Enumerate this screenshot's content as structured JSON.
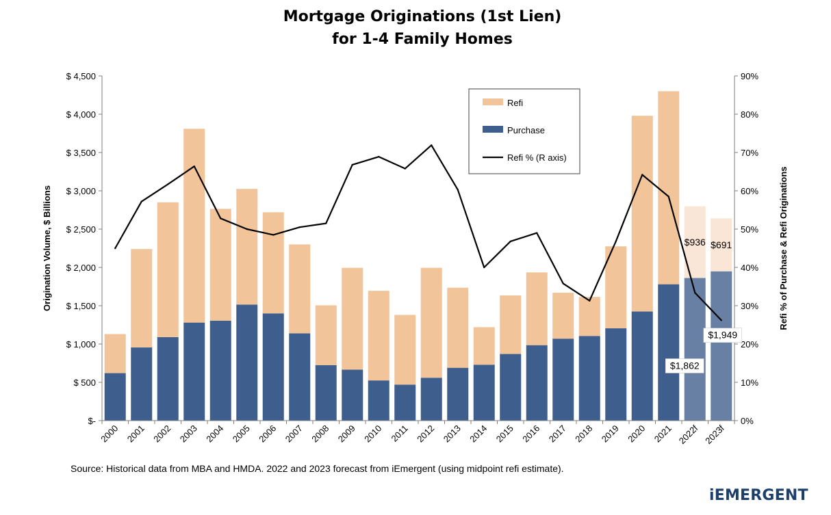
{
  "title_lines": [
    "Mortgage Originations (1st Lien)",
    "for 1-4 Family Homes"
  ],
  "source": "Source:  Historical data from MBA and HMDA.  2022 and 2023 forecast from iEmergent (using midpoint refi estimate).",
  "logo": {
    "text": "iEMERGENT"
  },
  "colors": {
    "refi": "#f2c49a",
    "purchase": "#3e5f8e",
    "refi_forecast": "#f9e6d6",
    "purchase_forecast": "#6880a3",
    "line": "#000000",
    "logo": "#1f3f6b"
  },
  "chart_data": {
    "type": "bar",
    "stacked": true,
    "categories": [
      "2000",
      "2001",
      "2002",
      "2003",
      "2004",
      "2005",
      "2006",
      "2007",
      "2008",
      "2009",
      "2010",
      "2011",
      "2012",
      "2013",
      "2014",
      "2015",
      "2016",
      "2017",
      "2018",
      "2019",
      "2020",
      "2021",
      "2022f",
      "2023f"
    ],
    "forecast_categories": [
      "2022f",
      "2023f"
    ],
    "series": [
      {
        "name": "Purchase",
        "type": "bar",
        "axis": "left",
        "values": [
          620,
          955,
          1090,
          1280,
          1305,
          1515,
          1400,
          1140,
          725,
          665,
          525,
          470,
          560,
          690,
          730,
          870,
          985,
          1070,
          1105,
          1205,
          1425,
          1780,
          1862,
          1949
        ]
      },
      {
        "name": "Refi",
        "type": "bar",
        "axis": "left",
        "values": [
          510,
          1285,
          1760,
          2530,
          1460,
          1510,
          1320,
          1160,
          780,
          1330,
          1170,
          910,
          1435,
          1045,
          490,
          765,
          950,
          600,
          510,
          1070,
          2555,
          2520,
          936,
          691
        ]
      },
      {
        "name": "Refi % (R axis)",
        "type": "line",
        "axis": "right",
        "values": [
          45,
          57.2,
          61.7,
          66.4,
          52.8,
          50,
          48.5,
          50.5,
          51.5,
          66.8,
          68.9,
          65.8,
          71.9,
          60.3,
          40,
          46.8,
          49,
          35.8,
          31.3,
          46.8,
          64.2,
          58.5,
          33.4,
          26.2
        ]
      }
    ],
    "data_labels": [
      {
        "category": "2022f",
        "series": "Refi",
        "text": "$936"
      },
      {
        "category": "2023f",
        "series": "Refi",
        "text": "$691"
      },
      {
        "category": "2022f",
        "series": "Purchase",
        "text": "$1,862"
      },
      {
        "category": "2023f",
        "series": "Purchase",
        "text": "$1,949"
      }
    ],
    "y_left": {
      "label": "Origination Volume, $ Billions",
      "range": [
        0,
        4500
      ],
      "ticks": [
        0,
        500,
        1000,
        1500,
        2000,
        2500,
        3000,
        3500,
        4000,
        4500
      ],
      "tick_labels": [
        "$-",
        "$ 500",
        "$ 1,000",
        "$ 1,500",
        "$ 2,000",
        "$ 2,500",
        "$ 3,000",
        "$ 3,500",
        "$ 4,000",
        "$ 4,500"
      ]
    },
    "y_right": {
      "label": "Refi % of Purchase & Refi Originations",
      "range": [
        0,
        90
      ],
      "ticks": [
        0,
        10,
        20,
        30,
        40,
        50,
        60,
        70,
        80,
        90
      ],
      "tick_labels": [
        "0%",
        "10%",
        "20%",
        "30%",
        "40%",
        "50%",
        "60%",
        "70%",
        "80%",
        "90%"
      ]
    },
    "legend": {
      "placement": "top-right-inside",
      "entries": [
        {
          "series": "Refi",
          "label": "Refi",
          "swatch": "bar"
        },
        {
          "series": "Purchase",
          "label": "Purchase",
          "swatch": "bar"
        },
        {
          "series": "Refi % (R axis)",
          "label": "Refi % (R axis)",
          "swatch": "line"
        }
      ]
    },
    "grid": false
  }
}
